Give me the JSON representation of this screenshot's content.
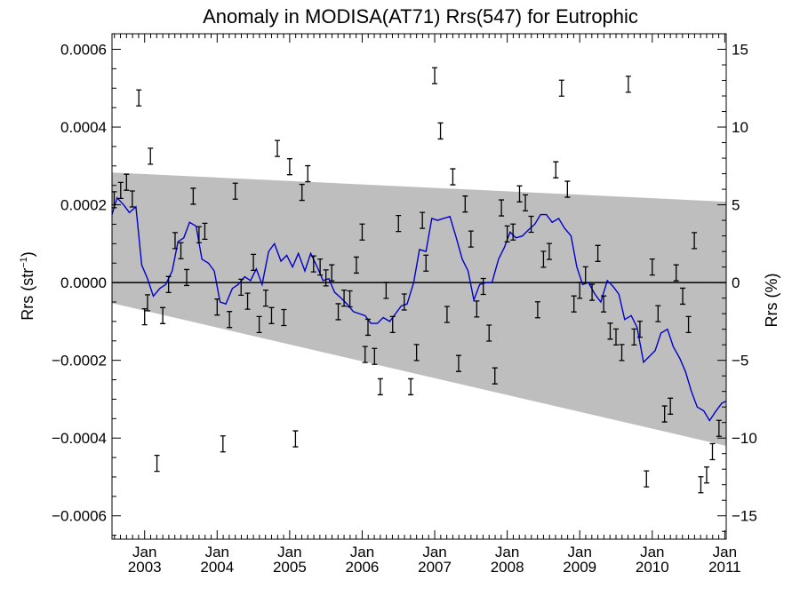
{
  "chart_data": {
    "type": "scatter",
    "title": "Anomaly in MODISA(AT71) Rrs(547) for Eutrophic",
    "ylabel_left": {
      "base": "Rrs (str",
      "sup": "−1",
      "end": ")"
    },
    "ylabel_right": "Rrs (%)",
    "xlim": [
      2002.55,
      2011.02
    ],
    "ylim": [
      -0.00066,
      0.00064
    ],
    "ylim_right": [
      -16.5,
      16
    ],
    "x_ticks": [
      {
        "x": 2003.0,
        "line1": "Jan",
        "line2": "2003"
      },
      {
        "x": 2004.0,
        "line1": "Jan",
        "line2": "2004"
      },
      {
        "x": 2005.0,
        "line1": "Jan",
        "line2": "2005"
      },
      {
        "x": 2006.0,
        "line1": "Jan",
        "line2": "2006"
      },
      {
        "x": 2007.0,
        "line1": "Jan",
        "line2": "2007"
      },
      {
        "x": 2008.0,
        "line1": "Jan",
        "line2": "2008"
      },
      {
        "x": 2009.0,
        "line1": "Jan",
        "line2": "2009"
      },
      {
        "x": 2010.0,
        "line1": "Jan",
        "line2": "2010"
      },
      {
        "x": 2011.0,
        "line1": "Jan",
        "line2": "2011"
      }
    ],
    "y_ticks_left": [
      {
        "v": 0.0006,
        "label": "0.0006"
      },
      {
        "v": 0.0004,
        "label": "0.0004"
      },
      {
        "v": 0.0002,
        "label": "0.0002"
      },
      {
        "v": 0.0,
        "label": "0.0000"
      },
      {
        "v": -0.0002,
        "label": "−0.0002"
      },
      {
        "v": -0.0004,
        "label": "−0.0004"
      },
      {
        "v": -0.0006,
        "label": "−0.0006"
      }
    ],
    "y_ticks_right": [
      {
        "v": 15,
        "label": "15"
      },
      {
        "v": 10,
        "label": "10"
      },
      {
        "v": 5,
        "label": "5"
      },
      {
        "v": 0,
        "label": "0"
      },
      {
        "v": -5,
        "label": "−5"
      },
      {
        "v": -10,
        "label": "−10"
      },
      {
        "v": -15,
        "label": "−15"
      }
    ],
    "zero_line": 0.0,
    "envelope": {
      "color": "#bebebe",
      "upper": [
        [
          2002.55,
          0.000283
        ],
        [
          2011.02,
          0.000208
        ]
      ],
      "lower": [
        [
          2002.55,
          -5.3e-05
        ],
        [
          2011.02,
          -0.00042
        ]
      ]
    },
    "points": [
      {
        "x": 2002.58,
        "y": 0.000213
      },
      {
        "x": 2002.67,
        "y": 0.000237
      },
      {
        "x": 2002.75,
        "y": 0.000258
      },
      {
        "x": 2002.83,
        "y": 0.000215
      },
      {
        "x": 2002.92,
        "y": 0.000475
      },
      {
        "x": 2003.0,
        "y": -8.8e-05
      },
      {
        "x": 2003.04,
        "y": -5.2e-05
      },
      {
        "x": 2003.08,
        "y": 0.000325
      },
      {
        "x": 2003.17,
        "y": -0.000465
      },
      {
        "x": 2003.25,
        "y": -8.5e-05
      },
      {
        "x": 2003.33,
        "y": -5e-06
      },
      {
        "x": 2003.42,
        "y": 0.000108
      },
      {
        "x": 2003.5,
        "y": 8.2e-05
      },
      {
        "x": 2003.58,
        "y": 1.3e-05
      },
      {
        "x": 2003.67,
        "y": 0.000222
      },
      {
        "x": 2003.75,
        "y": 0.000123
      },
      {
        "x": 2003.83,
        "y": 0.000132
      },
      {
        "x": 2004.0,
        "y": -6.3e-05
      },
      {
        "x": 2004.08,
        "y": -0.000415
      },
      {
        "x": 2004.17,
        "y": -9.5e-05
      },
      {
        "x": 2004.25,
        "y": 0.000235
      },
      {
        "x": 2004.33,
        "y": -1.2e-05
      },
      {
        "x": 2004.42,
        "y": -4.8e-05
      },
      {
        "x": 2004.5,
        "y": 5.2e-05
      },
      {
        "x": 2004.58,
        "y": -0.000108
      },
      {
        "x": 2004.67,
        "y": -4e-05
      },
      {
        "x": 2004.75,
        "y": -8.5e-05
      },
      {
        "x": 2004.83,
        "y": 0.000345
      },
      {
        "x": 2004.92,
        "y": -9e-05
      },
      {
        "x": 2005.0,
        "y": 0.000298
      },
      {
        "x": 2005.08,
        "y": -0.000402
      },
      {
        "x": 2005.17,
        "y": 0.000232
      },
      {
        "x": 2005.25,
        "y": 0.00028
      },
      {
        "x": 2005.33,
        "y": 4.8e-05
      },
      {
        "x": 2005.42,
        "y": 4e-05
      },
      {
        "x": 2005.5,
        "y": 1.2e-05
      },
      {
        "x": 2005.58,
        "y": 2.5e-05
      },
      {
        "x": 2005.67,
        "y": -7.5e-05
      },
      {
        "x": 2005.75,
        "y": -4e-05
      },
      {
        "x": 2005.83,
        "y": -4.2e-05
      },
      {
        "x": 2005.92,
        "y": 4.5e-05
      },
      {
        "x": 2006.0,
        "y": 0.00013
      },
      {
        "x": 2006.04,
        "y": -0.000185
      },
      {
        "x": 2006.08,
        "y": -0.000115
      },
      {
        "x": 2006.17,
        "y": -0.00019
      },
      {
        "x": 2006.25,
        "y": -0.000268
      },
      {
        "x": 2006.33,
        "y": -2e-05
      },
      {
        "x": 2006.42,
        "y": -0.000108
      },
      {
        "x": 2006.5,
        "y": 0.000152
      },
      {
        "x": 2006.58,
        "y": -5e-05
      },
      {
        "x": 2006.67,
        "y": -0.000268
      },
      {
        "x": 2006.75,
        "y": -0.00018
      },
      {
        "x": 2006.83,
        "y": 0.00016
      },
      {
        "x": 2006.88,
        "y": 5e-05
      },
      {
        "x": 2007.0,
        "y": 0.000532
      },
      {
        "x": 2007.08,
        "y": 0.00039
      },
      {
        "x": 2007.17,
        "y": -8.2e-05
      },
      {
        "x": 2007.25,
        "y": 0.000272
      },
      {
        "x": 2007.33,
        "y": -0.000208
      },
      {
        "x": 2007.42,
        "y": 0.000202
      },
      {
        "x": 2007.5,
        "y": 0.000112
      },
      {
        "x": 2007.58,
        "y": -6.8e-05
      },
      {
        "x": 2007.67,
        "y": -1e-05
      },
      {
        "x": 2007.75,
        "y": -0.00013
      },
      {
        "x": 2007.83,
        "y": -0.00024
      },
      {
        "x": 2007.92,
        "y": 0.000192
      },
      {
        "x": 2008.0,
        "y": 0.000125
      },
      {
        "x": 2008.08,
        "y": 0.00013
      },
      {
        "x": 2008.17,
        "y": 0.000228
      },
      {
        "x": 2008.25,
        "y": 0.000205
      },
      {
        "x": 2008.33,
        "y": 0.00015
      },
      {
        "x": 2008.42,
        "y": -7e-05
      },
      {
        "x": 2008.5,
        "y": 6e-05
      },
      {
        "x": 2008.58,
        "y": 8e-05
      },
      {
        "x": 2008.67,
        "y": 0.00029
      },
      {
        "x": 2008.75,
        "y": 0.0005
      },
      {
        "x": 2008.83,
        "y": 0.00024
      },
      {
        "x": 2008.92,
        "y": -5.5e-05
      },
      {
        "x": 2009.0,
        "y": -2e-05
      },
      {
        "x": 2009.08,
        "y": 2e-05
      },
      {
        "x": 2009.17,
        "y": -2.5e-05
      },
      {
        "x": 2009.25,
        "y": 7.5e-05
      },
      {
        "x": 2009.33,
        "y": -5.5e-05
      },
      {
        "x": 2009.42,
        "y": -0.000125
      },
      {
        "x": 2009.5,
        "y": -0.00014
      },
      {
        "x": 2009.58,
        "y": -0.00018
      },
      {
        "x": 2009.67,
        "y": 0.00051
      },
      {
        "x": 2009.75,
        "y": -0.00014
      },
      {
        "x": 2009.83,
        "y": -0.00012
      },
      {
        "x": 2009.92,
        "y": -0.000505
      },
      {
        "x": 2010.0,
        "y": 4e-05
      },
      {
        "x": 2010.08,
        "y": -8e-05
      },
      {
        "x": 2010.17,
        "y": -0.000338
      },
      {
        "x": 2010.25,
        "y": -0.000318
      },
      {
        "x": 2010.33,
        "y": 2.5e-05
      },
      {
        "x": 2010.42,
        "y": -3.5e-05
      },
      {
        "x": 2010.5,
        "y": -0.000108
      },
      {
        "x": 2010.58,
        "y": 0.000108
      },
      {
        "x": 2010.67,
        "y": -0.00052
      },
      {
        "x": 2010.75,
        "y": -0.000495
      },
      {
        "x": 2010.83,
        "y": -0.000435
      },
      {
        "x": 2010.92,
        "y": -0.000375
      }
    ],
    "smoothed_line": {
      "color": "#0000cc",
      "points": [
        [
          2002.55,
          0.000175
        ],
        [
          2002.62,
          0.000218
        ],
        [
          2002.71,
          0.0002
        ],
        [
          2002.79,
          0.00018
        ],
        [
          2002.88,
          0.000195
        ],
        [
          2002.96,
          4.5e-05
        ],
        [
          2003.04,
          1e-05
        ],
        [
          2003.12,
          -3.5e-05
        ],
        [
          2003.21,
          -1.5e-05
        ],
        [
          2003.29,
          -5e-06
        ],
        [
          2003.38,
          3e-05
        ],
        [
          2003.46,
          0.000105
        ],
        [
          2003.54,
          0.000115
        ],
        [
          2003.62,
          0.000155
        ],
        [
          2003.71,
          0.000145
        ],
        [
          2003.79,
          6e-05
        ],
        [
          2003.88,
          5e-05
        ],
        [
          2003.96,
          3e-05
        ],
        [
          2004.04,
          -5e-05
        ],
        [
          2004.12,
          -5.5e-05
        ],
        [
          2004.21,
          -1.5e-05
        ],
        [
          2004.29,
          -5e-06
        ],
        [
          2004.38,
          1.5e-05
        ],
        [
          2004.46,
          5e-06
        ],
        [
          2004.54,
          3.5e-05
        ],
        [
          2004.62,
          -5e-06
        ],
        [
          2004.71,
          8e-05
        ],
        [
          2004.79,
          0.0001
        ],
        [
          2004.88,
          5.5e-05
        ],
        [
          2004.96,
          7e-05
        ],
        [
          2005.04,
          4e-05
        ],
        [
          2005.12,
          7.5e-05
        ],
        [
          2005.21,
          3e-05
        ],
        [
          2005.29,
          7.5e-05
        ],
        [
          2005.38,
          4e-05
        ],
        [
          2005.46,
          5e-06
        ],
        [
          2005.54,
          1e-05
        ],
        [
          2005.62,
          -2.5e-05
        ],
        [
          2005.71,
          -4e-05
        ],
        [
          2005.79,
          -5.5e-05
        ],
        [
          2005.88,
          -7.5e-05
        ],
        [
          2005.96,
          -8e-05
        ],
        [
          2006.04,
          -8.5e-05
        ],
        [
          2006.12,
          -0.000105
        ],
        [
          2006.21,
          -0.000105
        ],
        [
          2006.29,
          -9e-05
        ],
        [
          2006.38,
          -0.0001
        ],
        [
          2006.46,
          -8e-05
        ],
        [
          2006.54,
          -6e-05
        ],
        [
          2006.62,
          -5.5e-05
        ],
        [
          2006.71,
          0.0
        ],
        [
          2006.79,
          8.5e-05
        ],
        [
          2006.88,
          8e-05
        ],
        [
          2006.96,
          0.000165
        ],
        [
          2007.04,
          0.00016
        ],
        [
          2007.12,
          0.000165
        ],
        [
          2007.21,
          0.00017
        ],
        [
          2007.29,
          0.00012
        ],
        [
          2007.38,
          6e-05
        ],
        [
          2007.46,
          3e-05
        ],
        [
          2007.54,
          -4.5e-05
        ],
        [
          2007.62,
          -5e-06
        ],
        [
          2007.71,
          0.0
        ],
        [
          2007.79,
          0.0
        ],
        [
          2007.88,
          6e-05
        ],
        [
          2007.96,
          9e-05
        ],
        [
          2008.04,
          0.00013
        ],
        [
          2008.12,
          0.000115
        ],
        [
          2008.21,
          0.00012
        ],
        [
          2008.29,
          0.000135
        ],
        [
          2008.38,
          0.00015
        ],
        [
          2008.46,
          0.000175
        ],
        [
          2008.54,
          0.000175
        ],
        [
          2008.62,
          0.000155
        ],
        [
          2008.71,
          0.000165
        ],
        [
          2008.79,
          0.00014
        ],
        [
          2008.88,
          0.00012
        ],
        [
          2008.96,
          4e-05
        ],
        [
          2009.04,
          -5e-06
        ],
        [
          2009.12,
          0.0
        ],
        [
          2009.21,
          -3e-05
        ],
        [
          2009.29,
          -5e-05
        ],
        [
          2009.38,
          5e-06
        ],
        [
          2009.46,
          -1e-05
        ],
        [
          2009.54,
          -3e-05
        ],
        [
          2009.62,
          -9.5e-05
        ],
        [
          2009.71,
          -8.5e-05
        ],
        [
          2009.79,
          -0.000115
        ],
        [
          2009.88,
          -0.000205
        ],
        [
          2009.96,
          -0.00019
        ],
        [
          2010.04,
          -0.000175
        ],
        [
          2010.12,
          -0.00013
        ],
        [
          2010.21,
          -0.00012
        ],
        [
          2010.29,
          -0.000165
        ],
        [
          2010.38,
          -0.000195
        ],
        [
          2010.46,
          -0.00023
        ],
        [
          2010.54,
          -0.00028
        ],
        [
          2010.62,
          -0.00032
        ],
        [
          2010.71,
          -0.00033
        ],
        [
          2010.79,
          -0.000355
        ],
        [
          2010.88,
          -0.00033
        ],
        [
          2010.96,
          -0.00031
        ],
        [
          2011.02,
          -0.000305
        ]
      ]
    }
  }
}
